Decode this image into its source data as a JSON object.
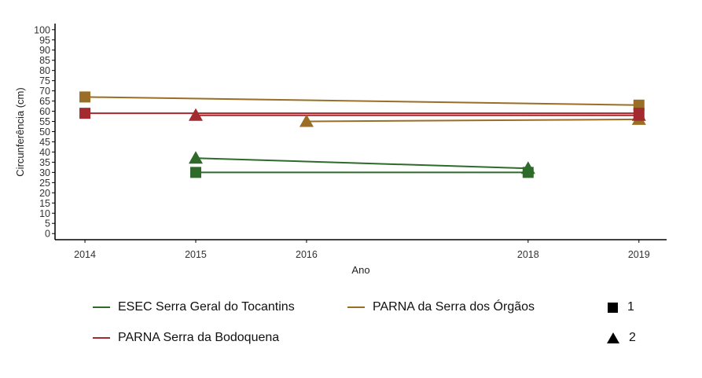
{
  "chart_data": {
    "type": "line",
    "title": "",
    "xlabel": "Ano",
    "ylabel": "Circunferência (cm)",
    "x_ticks": [
      2014,
      2015,
      2016,
      2018,
      2019
    ],
    "xlim": [
      2013.73,
      2019.25
    ],
    "y_ticks": [
      0,
      5,
      10,
      15,
      20,
      25,
      30,
      35,
      40,
      45,
      50,
      55,
      60,
      65,
      70,
      75,
      80,
      85,
      90,
      95,
      100
    ],
    "ylim": [
      -3,
      103
    ],
    "grid": false,
    "legend_position": "bottom",
    "series": [
      {
        "name": "ESEC Serra Geral do Tocantins",
        "color": "#2e6b2a",
        "group": "1",
        "shape": "square",
        "points": [
          {
            "x": 2015,
            "y": 30
          },
          {
            "x": 2018,
            "y": 30
          }
        ]
      },
      {
        "name": "ESEC Serra Geral do Tocantins",
        "color": "#2e6b2a",
        "group": "2",
        "shape": "triangle",
        "points": [
          {
            "x": 2015,
            "y": 37
          },
          {
            "x": 2018,
            "y": 32
          }
        ]
      },
      {
        "name": "PARNA da Serra dos Órgãos",
        "color": "#9a6e26",
        "group": "1",
        "shape": "square",
        "points": [
          {
            "x": 2014,
            "y": 67
          },
          {
            "x": 2019,
            "y": 63
          }
        ]
      },
      {
        "name": "PARNA da Serra dos Órgãos",
        "color": "#9a6e26",
        "group": "2",
        "shape": "triangle",
        "points": [
          {
            "x": 2016,
            "y": 55
          },
          {
            "x": 2019,
            "y": 56
          }
        ]
      },
      {
        "name": "PARNA Serra da Bodoquena",
        "color": "#a32a2e",
        "group": "1",
        "shape": "square",
        "points": [
          {
            "x": 2014,
            "y": 59
          },
          {
            "x": 2019,
            "y": 59
          }
        ]
      },
      {
        "name": "PARNA Serra da Bodoquena",
        "color": "#a32a2e",
        "group": "2",
        "shape": "triangle",
        "points": [
          {
            "x": 2015,
            "y": 58
          },
          {
            "x": 2019,
            "y": 58
          }
        ]
      }
    ]
  },
  "legend": {
    "colors": [
      {
        "label": "ESEC Serra Geral do Tocantins",
        "color": "#2e6b2a"
      },
      {
        "label": "PARNA da Serra dos Órgãos",
        "color": "#9a6e26"
      },
      {
        "label": "PARNA Serra da Bodoquena",
        "color": "#a32a2e"
      }
    ],
    "shapes": [
      {
        "label": "1",
        "shape": "square"
      },
      {
        "label": "2",
        "shape": "triangle"
      }
    ]
  }
}
